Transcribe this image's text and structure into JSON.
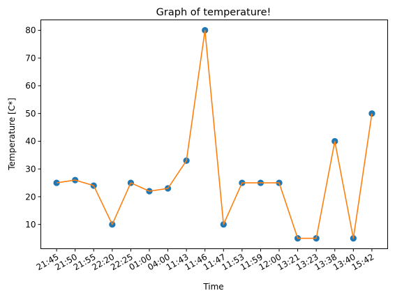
{
  "chart_data": {
    "type": "line",
    "title": "Graph of temperature!",
    "xlabel": "Time",
    "ylabel": "Temperature [C*]",
    "categories": [
      "21:45",
      "21:50",
      "21:55",
      "22:20",
      "22:25",
      "01:00",
      "04:00",
      "11:43",
      "11:46",
      "11:47",
      "11:53",
      "11:59",
      "12:00",
      "13:21",
      "13:23",
      "13:38",
      "13:40",
      "15:42"
    ],
    "series": [
      {
        "values": [
          25,
          26,
          24,
          10,
          25,
          22,
          23,
          33,
          80,
          10,
          25,
          25,
          25,
          5,
          5,
          40,
          5,
          50
        ]
      }
    ],
    "yticks": [
      10,
      20,
      30,
      40,
      50,
      60,
      70,
      80
    ],
    "ylim": [
      1.25,
      83.75
    ],
    "grid": false,
    "colors": {
      "line": "#ff7f0e",
      "markers": "#1f77b4",
      "axes": "#000000"
    }
  }
}
